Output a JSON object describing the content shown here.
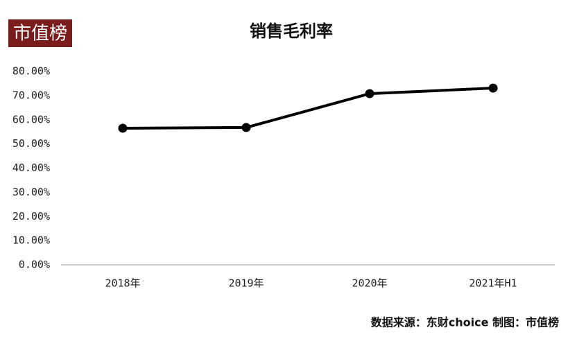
{
  "logo": "市值榜",
  "source": "数据来源：东财choice  制图：市值榜",
  "chart_data": {
    "type": "line",
    "title": "销售毛利率",
    "categories": [
      "2018年",
      "2019年",
      "2020年",
      "2021年H1"
    ],
    "series": [
      {
        "name": "销售毛利率",
        "color": "#000000",
        "values": [
          56.5,
          56.8,
          70.8,
          73.1
        ]
      }
    ],
    "ylim": [
      0,
      80
    ],
    "yticks": [
      {
        "value": 0,
        "label": "0.00%"
      },
      {
        "value": 10,
        "label": "10.00%"
      },
      {
        "value": 20,
        "label": "20.00%"
      },
      {
        "value": 30,
        "label": "30.00%"
      },
      {
        "value": 40,
        "label": "40.00%"
      },
      {
        "value": 50,
        "label": "50.00%"
      },
      {
        "value": 60,
        "label": "60.00%"
      },
      {
        "value": 70,
        "label": "70.00%"
      },
      {
        "value": 80,
        "label": "80.00%"
      }
    ],
    "grid": false
  }
}
